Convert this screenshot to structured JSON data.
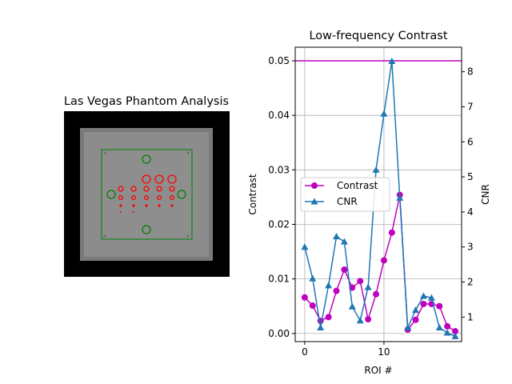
{
  "left_panel": {
    "title": "Las Vegas Phantom Analysis"
  },
  "chart_data": {
    "type": "line",
    "title": "Low-frequency Contrast",
    "xlabel": "ROI #",
    "ylabel": "Contrast",
    "y2label": "CNR",
    "x": [
      0,
      1,
      2,
      3,
      4,
      5,
      6,
      7,
      8,
      9,
      10,
      11,
      12,
      13,
      14,
      15,
      16,
      17,
      18,
      19
    ],
    "xlim": [
      -1.2,
      19.8
    ],
    "ylim": [
      -0.0015,
      0.0525
    ],
    "y2lim": [
      0.3,
      8.7
    ],
    "xticks": [
      0,
      10
    ],
    "yticks": [
      0.0,
      0.01,
      0.02,
      0.03,
      0.04,
      0.05
    ],
    "ytick_labels": [
      "0.00",
      "0.01",
      "0.02",
      "0.03",
      "0.04",
      "0.05"
    ],
    "y2ticks": [
      1,
      2,
      3,
      4,
      5,
      6,
      7,
      8
    ],
    "threshold": 0.05,
    "grid": true,
    "legend_position": "center-left",
    "series": [
      {
        "name": "Contrast",
        "axis": "left",
        "color": "#bf00bf",
        "marker": "circle",
        "values": [
          0.0066,
          0.0051,
          0.0023,
          0.003,
          0.0078,
          0.0117,
          0.0084,
          0.0096,
          0.0026,
          0.0072,
          0.0134,
          0.0185,
          0.0254,
          0.0007,
          0.0025,
          0.0054,
          0.0054,
          0.005,
          0.0013,
          0.0004
        ]
      },
      {
        "name": "CNR",
        "axis": "right",
        "color": "#1f77b4",
        "marker": "triangle",
        "values": [
          3.0,
          2.1,
          0.7,
          1.9,
          3.3,
          3.15,
          1.3,
          0.9,
          1.85,
          5.2,
          6.8,
          8.3,
          4.4,
          0.7,
          1.2,
          1.6,
          1.55,
          0.7,
          0.55,
          0.45
        ]
      }
    ]
  }
}
